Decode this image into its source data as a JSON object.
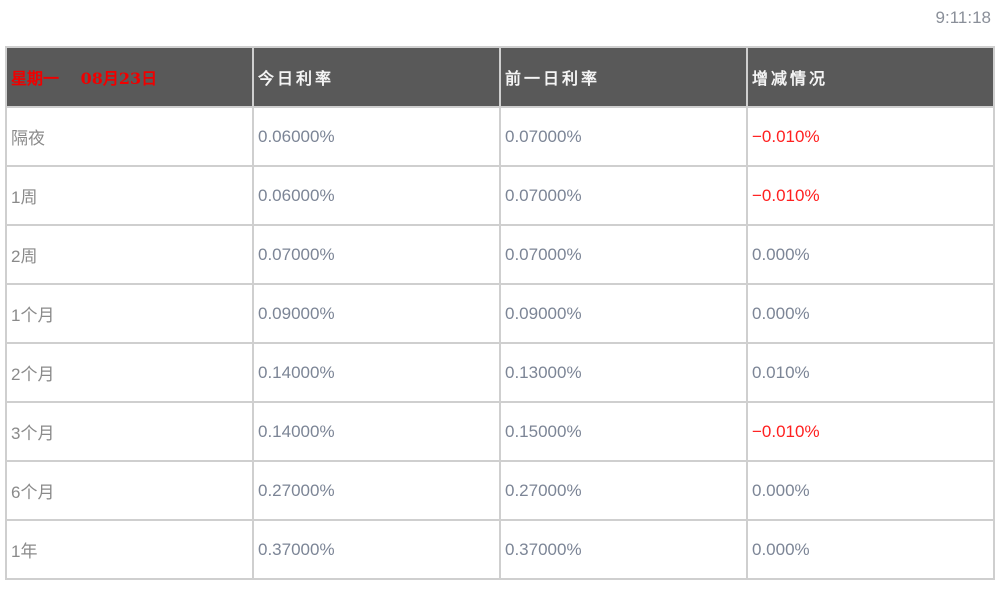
{
  "clock": "9:11:18",
  "header": {
    "date": "星期一　 08月23日",
    "today": "今日利率",
    "prev": "前一日利率",
    "change": "增减情况"
  },
  "colors": {
    "header_bg": "#595959",
    "negative": "#ff2020",
    "date": "#f00000"
  },
  "rows": [
    {
      "term": "隔夜",
      "today": "0.06000%",
      "prev": "0.07000%",
      "change": "−0.010%",
      "negative": true
    },
    {
      "term": "1周",
      "today": "0.06000%",
      "prev": "0.07000%",
      "change": "−0.010%",
      "negative": true
    },
    {
      "term": "2周",
      "today": "0.07000%",
      "prev": "0.07000%",
      "change": "0.000%",
      "negative": false
    },
    {
      "term": "1个月",
      "today": "0.09000%",
      "prev": "0.09000%",
      "change": "0.000%",
      "negative": false
    },
    {
      "term": "2个月",
      "today": "0.14000%",
      "prev": "0.13000%",
      "change": "0.010%",
      "negative": false
    },
    {
      "term": "3个月",
      "today": "0.14000%",
      "prev": "0.15000%",
      "change": "−0.010%",
      "negative": true
    },
    {
      "term": "6个月",
      "today": "0.27000%",
      "prev": "0.27000%",
      "change": "0.000%",
      "negative": false
    },
    {
      "term": "1年",
      "today": "0.37000%",
      "prev": "0.37000%",
      "change": "0.000%",
      "negative": false
    }
  ]
}
